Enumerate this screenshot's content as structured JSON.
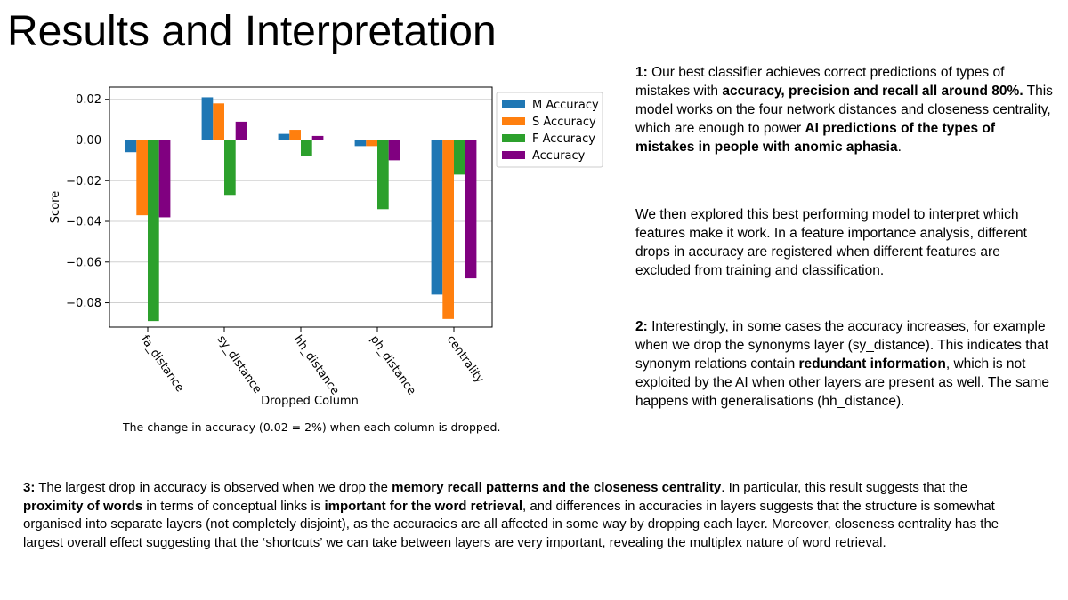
{
  "slide": {
    "title": "Results and Interpretation",
    "caption": "The change in accuracy (0.02 = 2%) when each column  is dropped."
  },
  "paragraphs": {
    "p1": {
      "num": "1:",
      "t1": " Our best classifier achieves correct predictions of types of mistakes with ",
      "b1": "accuracy, precision and recall all around 80%.",
      "t2": " This model works on the four network distances and closeness centrality, which are enough to power ",
      "b2": "AI predictions of the types of mistakes in people with anomic aphasia",
      "t3": "."
    },
    "p2": {
      "text": "We then explored this best performing model to interpret which features make it work. In a feature importance analysis, different drops in accuracy are registered when different features are excluded from training and classification."
    },
    "p3": {
      "num": "2:",
      "t1": " Interestingly, in some cases the accuracy increases, for example when we drop the synonyms layer (sy_distance). This indicates that synonym relations contain ",
      "b1": "redundant information",
      "t2": ", which is not exploited by the AI when other layers are present as well. The same happens with generalisations (hh_distance)."
    },
    "p4": {
      "num": "3:",
      "t1": " The largest drop in accuracy is observed when we drop the ",
      "b1": "memory recall patterns and the closeness centrality",
      "t2": ". In particular, this result suggests that the ",
      "b2": "proximity of words",
      "t3": " in terms of conceptual links is ",
      "b3": "important for the word retrieval",
      "t4": ", and differences in accuracies in layers suggests that the structure is somewhat organised into separate layers (not completely disjoint), as the accuracies are all affected in some way by dropping each layer. Moreover, closeness centrality has the largest overall effect suggesting that the ‘shortcuts’ we can take between layers are very important, revealing the multiplex nature of word retrieval."
    }
  },
  "chart_data": {
    "type": "bar",
    "title": "",
    "xlabel": "Dropped Column",
    "ylabel": "Score",
    "ylim": [
      -0.092,
      0.026
    ],
    "yticks": [
      0.02,
      0.0,
      -0.02,
      -0.04,
      -0.06,
      -0.08
    ],
    "ytick_labels": [
      "0.02",
      "0.00",
      "−0.02",
      "−0.04",
      "−0.06",
      "−0.08"
    ],
    "categories": [
      "fa_distance",
      "sy_distance",
      "hh_distance",
      "ph_distance",
      "centrality"
    ],
    "series": [
      {
        "name": "M Accuracy",
        "color": "#1f77b4",
        "values": [
          -0.006,
          0.021,
          0.003,
          -0.003,
          -0.076
        ]
      },
      {
        "name": "S Accuracy",
        "color": "#ff7f0e",
        "values": [
          -0.037,
          0.018,
          0.005,
          -0.003,
          -0.088
        ]
      },
      {
        "name": "F Accuracy",
        "color": "#2ca02c",
        "values": [
          -0.089,
          -0.027,
          -0.008,
          -0.034,
          -0.017
        ]
      },
      {
        "name": "Accuracy",
        "color": "#800080",
        "values": [
          -0.038,
          0.009,
          0.002,
          -0.01,
          -0.068
        ]
      }
    ],
    "grid": true,
    "legend": "top-right"
  }
}
